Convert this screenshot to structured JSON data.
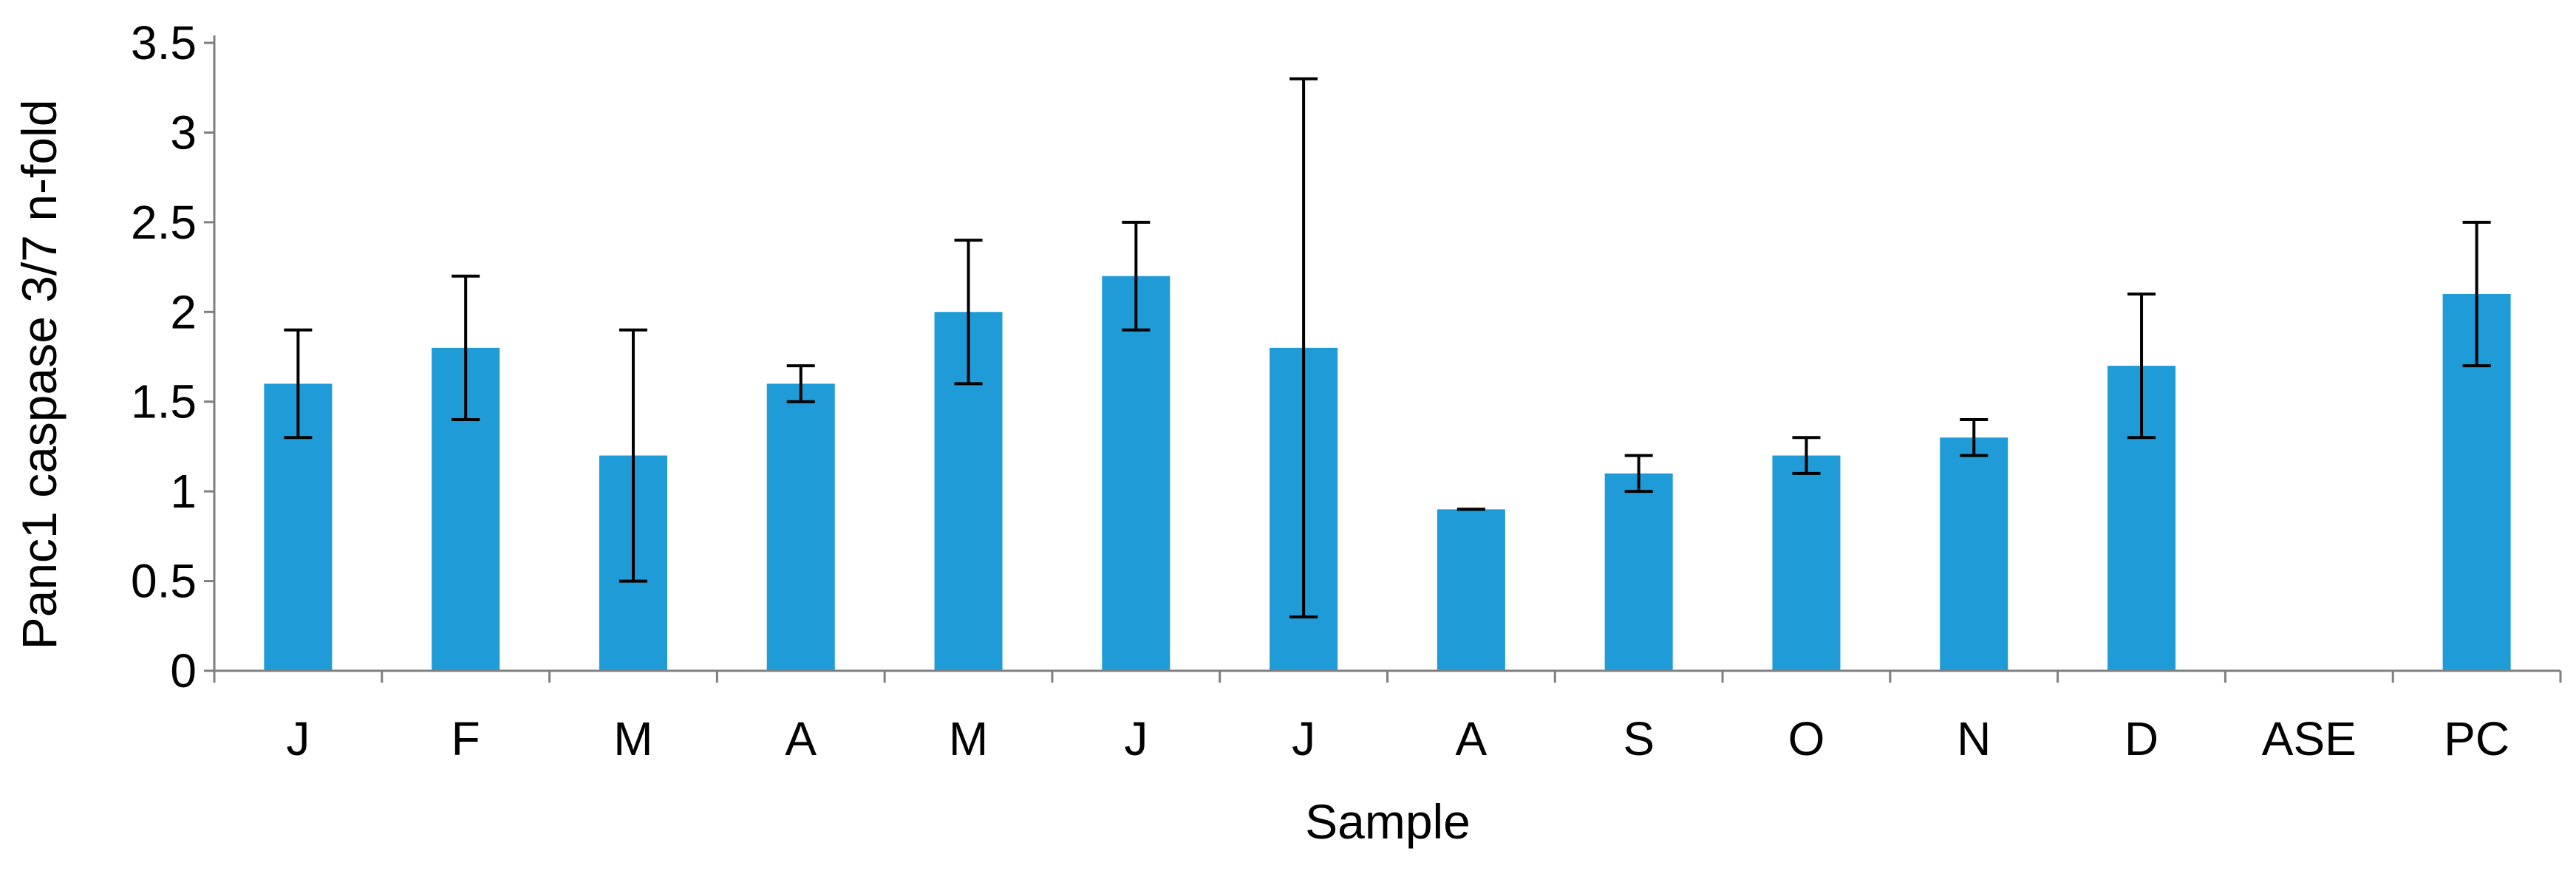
{
  "colors": {
    "bar": "#1F9BD7",
    "axis": "#7F7F7F",
    "error_bar": "#000000",
    "text": "#000000",
    "background": "#FFFFFF"
  },
  "chart_data": {
    "type": "bar",
    "title": "",
    "xlabel": "Sample",
    "ylabel": "Panc1 caspase 3/7 n-fold",
    "categories": [
      "J",
      "F",
      "M",
      "A",
      "M",
      "J",
      "J",
      "A",
      "S",
      "O",
      "N",
      "D",
      "ASE",
      "PC"
    ],
    "series": [
      {
        "values": [
          1.6,
          1.8,
          1.2,
          1.6,
          2.0,
          2.2,
          1.8,
          0.9,
          1.1,
          1.2,
          1.3,
          1.7,
          null,
          2.1
        ],
        "error_low": [
          1.3,
          1.4,
          0.5,
          1.5,
          1.6,
          1.9,
          0.3,
          0.9,
          1.0,
          1.1,
          1.2,
          1.3,
          null,
          1.7
        ],
        "error_high": [
          1.9,
          2.2,
          1.9,
          1.7,
          2.4,
          2.5,
          3.3,
          0.9,
          1.2,
          1.3,
          1.4,
          2.1,
          null,
          2.5
        ]
      }
    ],
    "ylim": [
      0,
      3.5
    ],
    "yticks": [
      "0",
      "0.5",
      "1",
      "1.5",
      "2",
      "2.5",
      "3",
      "3.5"
    ],
    "grid": false,
    "legend": "none"
  }
}
